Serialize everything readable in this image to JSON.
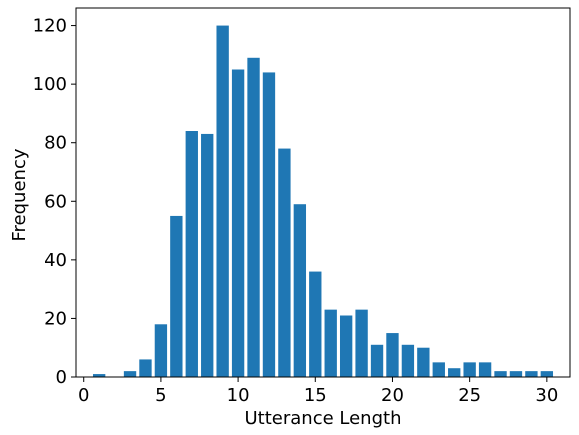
{
  "chart_data": {
    "type": "bar",
    "title": "",
    "xlabel": "Utterance Length",
    "ylabel": "Frequency",
    "xlim": [
      -0.5,
      31.5
    ],
    "ylim": [
      0,
      126
    ],
    "x_ticks": [
      0,
      5,
      10,
      15,
      20,
      25,
      30
    ],
    "y_ticks": [
      0,
      20,
      40,
      60,
      80,
      100,
      120
    ],
    "grid": false,
    "legend": "none",
    "bar_color": "#1f77b4",
    "x": [
      1,
      2,
      3,
      4,
      5,
      6,
      7,
      8,
      9,
      10,
      11,
      12,
      13,
      14,
      15,
      16,
      17,
      18,
      19,
      20,
      21,
      22,
      23,
      24,
      25,
      26,
      27,
      28,
      29,
      30
    ],
    "values": [
      1,
      0,
      2,
      6,
      18,
      55,
      84,
      83,
      120,
      105,
      109,
      104,
      78,
      59,
      36,
      23,
      21,
      23,
      11,
      15,
      11,
      10,
      5,
      3,
      5,
      5,
      2,
      2,
      2,
      2
    ]
  }
}
